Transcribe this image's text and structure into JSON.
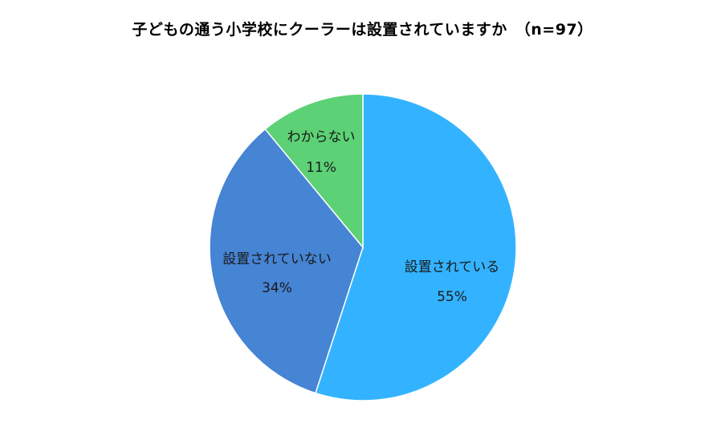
{
  "chart_data": {
    "type": "pie",
    "title": "子どもの通う小学校にクーラーは設置されていますか　（n=97）",
    "slices": [
      {
        "label": "設置されている",
        "percent_label": "55%",
        "value": 55,
        "color": "#33b3ff"
      },
      {
        "label": "設置されていない",
        "percent_label": "34%",
        "value": 34,
        "color": "#4684d4"
      },
      {
        "label": "わからない",
        "percent_label": "11%",
        "value": 11,
        "color": "#5cd175"
      }
    ],
    "start_angle": "12 o'clock",
    "direction": "clockwise",
    "legend": "none"
  }
}
